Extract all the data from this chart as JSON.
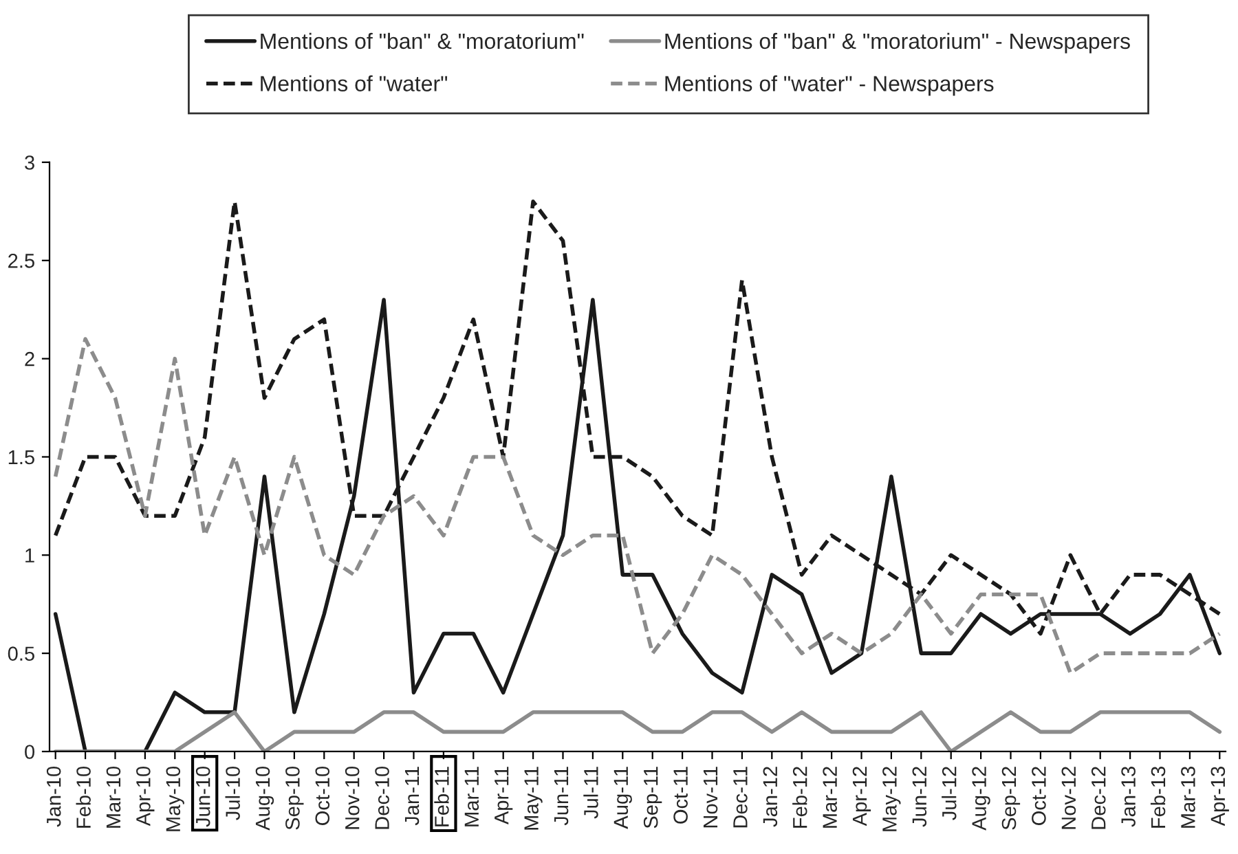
{
  "chart_data": {
    "type": "line",
    "categories": [
      "Jan-10",
      "Feb-10",
      "Mar-10",
      "Apr-10",
      "May-10",
      "Jun-10",
      "Jul-10",
      "Aug-10",
      "Sep-10",
      "Oct-10",
      "Nov-10",
      "Dec-10",
      "Jan-11",
      "Feb-11",
      "Mar-11",
      "Apr-11",
      "May-11",
      "Jun-11",
      "Jul-11",
      "Aug-11",
      "Sep-11",
      "Oct-11",
      "Nov-11",
      "Dec-11",
      "Jan-12",
      "Feb-12",
      "Mar-12",
      "Apr-12",
      "May-12",
      "Jun-12",
      "Jul-12",
      "Aug-12",
      "Sep-12",
      "Oct-12",
      "Nov-12",
      "Dec-12",
      "Jan-13",
      "Feb-13",
      "Mar-13",
      "Apr-13"
    ],
    "series": [
      {
        "name": "Mentions of \"ban\" & \"moratorium\"",
        "color": "#1a1a1a",
        "line_style": "solid",
        "values": [
          0.7,
          0,
          0,
          0,
          0.3,
          0.2,
          0.2,
          1.4,
          0.2,
          0.7,
          1.3,
          2.3,
          0.3,
          0.6,
          0.6,
          0.3,
          0.7,
          1.1,
          2.3,
          0.9,
          0.9,
          0.6,
          0.4,
          0.3,
          0.9,
          0.8,
          0.4,
          0.5,
          1.4,
          0.5,
          0.5,
          0.7,
          0.6,
          0.7,
          0.7,
          0.7,
          0.6,
          0.7,
          0.9,
          0.5
        ]
      },
      {
        "name": "Mentions of \"ban\" & \"moratorium\" - Newspapers",
        "color": "#8c8c8c",
        "line_style": "solid",
        "values": [
          0,
          0,
          0,
          0,
          0,
          0.1,
          0.2,
          0,
          0.1,
          0.1,
          0.1,
          0.2,
          0.2,
          0.1,
          0.1,
          0.1,
          0.2,
          0.2,
          0.2,
          0.2,
          0.1,
          0.1,
          0.2,
          0.2,
          0.1,
          0.2,
          0.1,
          0.1,
          0.1,
          0.2,
          0,
          0.1,
          0.2,
          0.1,
          0.1,
          0.2,
          0.2,
          0.2,
          0.2,
          0.1
        ]
      },
      {
        "name": "Mentions of \"water\"",
        "color": "#1a1a1a",
        "line_style": "dashed",
        "values": [
          1.1,
          1.5,
          1.5,
          1.2,
          1.2,
          1.6,
          2.8,
          1.8,
          2.1,
          2.2,
          1.2,
          1.2,
          1.5,
          1.8,
          2.2,
          1.5,
          2.8,
          2.6,
          1.5,
          1.5,
          1.4,
          1.2,
          1.1,
          2.4,
          1.5,
          0.9,
          1.1,
          1.0,
          0.9,
          0.8,
          1.0,
          0.9,
          0.8,
          0.6,
          1.0,
          0.7,
          0.9,
          0.9,
          0.8,
          0.7
        ]
      },
      {
        "name": "Mentions of \"water\" - Newspapers",
        "color": "#8c8c8c",
        "line_style": "dashed",
        "values": [
          1.4,
          2.1,
          1.8,
          1.2,
          2.0,
          1.1,
          1.5,
          1.0,
          1.5,
          1.0,
          0.9,
          1.2,
          1.3,
          1.1,
          1.5,
          1.5,
          1.1,
          1.0,
          1.1,
          1.1,
          0.5,
          0.7,
          1.0,
          0.9,
          0.7,
          0.5,
          0.6,
          0.5,
          0.6,
          0.8,
          0.6,
          0.8,
          0.8,
          0.8,
          0.4,
          0.5,
          0.5,
          0.5,
          0.5,
          0.6
        ]
      }
    ],
    "ylim": [
      0,
      3
    ],
    "yticks": [
      0,
      0.5,
      1,
      1.5,
      2,
      2.5,
      3
    ],
    "legend": "top",
    "grid": false,
    "marker": "none"
  }
}
